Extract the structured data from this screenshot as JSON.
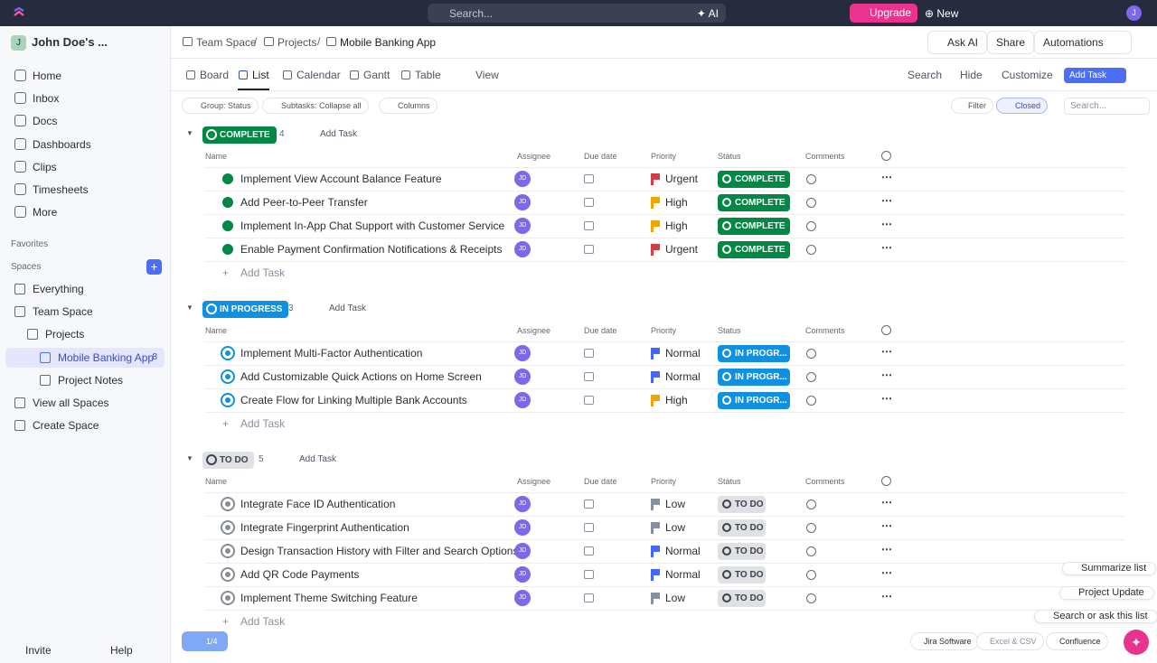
{
  "topbar": {
    "search": "Search...",
    "ai": "AI",
    "upgrade": "Upgrade",
    "new": "New",
    "avatar": "J"
  },
  "sidebar": {
    "workspace": "John Doe's ...",
    "workspace_initial": "J",
    "nav": [
      "Home",
      "Inbox",
      "Docs",
      "Dashboards",
      "Clips",
      "Timesheets",
      "More"
    ],
    "favorites": "Favorites",
    "spaces": "Spaces",
    "tree": [
      {
        "label": "Everything"
      },
      {
        "label": "Team Space"
      },
      {
        "label": "Projects"
      },
      {
        "label": "Mobile Banking App",
        "count": 8
      },
      {
        "label": "Project Notes"
      },
      {
        "label": "View all Spaces"
      },
      {
        "label": "Create Space"
      }
    ],
    "invite": "Invite",
    "help": "Help"
  },
  "header": {
    "breadcrumb": [
      "Team Space",
      "Projects",
      "Mobile Banking App"
    ],
    "ask_ai": "Ask AI",
    "share": "Share",
    "automations": "Automations"
  },
  "views": {
    "tabs": [
      "Board",
      "List",
      "Calendar",
      "Gantt",
      "Table"
    ],
    "add_view": "View",
    "search": "Search",
    "hide": "Hide",
    "customize": "Customize",
    "add_task": "Add Task"
  },
  "filters": {
    "group": "Group: Status",
    "subtasks": "Subtasks: Collapse all",
    "columns": "Columns",
    "filter": "Filter",
    "closed": "Closed",
    "search": "Search..."
  },
  "columns": [
    "Name",
    "Assignee",
    "Due date",
    "Priority",
    "Status",
    "Comments"
  ],
  "groups": [
    {
      "status": "COMPLETE",
      "count": 4,
      "add_task": "Add Task",
      "add_row": "Add Task",
      "tasks": [
        {
          "name": "Implement View Account Balance Feature",
          "assignee": "JD",
          "priority": "Urgent",
          "flag": "#d33d44",
          "status": "COMPLETE"
        },
        {
          "name": "Add Peer-to-Peer Transfer",
          "assignee": "JD",
          "priority": "High",
          "flag": "#f0a500",
          "status": "COMPLETE"
        },
        {
          "name": "Implement In-App Chat Support with Customer Service",
          "assignee": "JD",
          "priority": "High",
          "flag": "#f0a500",
          "status": "COMPLETE"
        },
        {
          "name": "Enable Payment Confirmation Notifications & Receipts",
          "assignee": "JD",
          "priority": "Urgent",
          "flag": "#d33d44",
          "status": "COMPLETE"
        }
      ]
    },
    {
      "status": "IN PROGRESS",
      "count": 3,
      "add_task": "Add Task",
      "add_row": "Add Task",
      "tasks": [
        {
          "name": "Implement Multi-Factor Authentication",
          "assignee": "JD",
          "priority": "Normal",
          "flag": "#4466ff",
          "status": "IN PROGR..."
        },
        {
          "name": "Add Customizable Quick Actions on Home Screen",
          "assignee": "JD",
          "priority": "Normal",
          "flag": "#4466ff",
          "status": "IN PROGR..."
        },
        {
          "name": "Create Flow for Linking Multiple Bank Accounts",
          "assignee": "JD",
          "priority": "High",
          "flag": "#f0a500",
          "status": "IN PROGR..."
        }
      ]
    },
    {
      "status": "TO DO",
      "count": 5,
      "add_task": "Add Task",
      "add_row": "Add Task",
      "tasks": [
        {
          "name": "Integrate Face ID Authentication",
          "assignee": "JD",
          "priority": "Low",
          "flag": "#87909e",
          "status": "TO DO"
        },
        {
          "name": "Integrate Fingerprint Authentication",
          "assignee": "JD",
          "priority": "Low",
          "flag": "#87909e",
          "status": "TO DO"
        },
        {
          "name": "Design Transaction History with Filter and Search Options",
          "assignee": "JD",
          "priority": "Normal",
          "flag": "#4466ff",
          "status": "TO DO"
        },
        {
          "name": "Add QR Code Payments",
          "assignee": "JD",
          "priority": "Normal",
          "flag": "#4466ff",
          "status": "TO DO"
        },
        {
          "name": "Implement Theme Switching Feature",
          "assignee": "JD",
          "priority": "Low",
          "flag": "#87909e",
          "status": "TO DO"
        }
      ]
    }
  ],
  "floating": {
    "actions": [
      "Summarize list",
      "Project Update",
      "Search or ask this list"
    ],
    "integrations": [
      "Jira Software",
      "Excel & CSV",
      "Confluence"
    ],
    "badge": "1/4"
  }
}
